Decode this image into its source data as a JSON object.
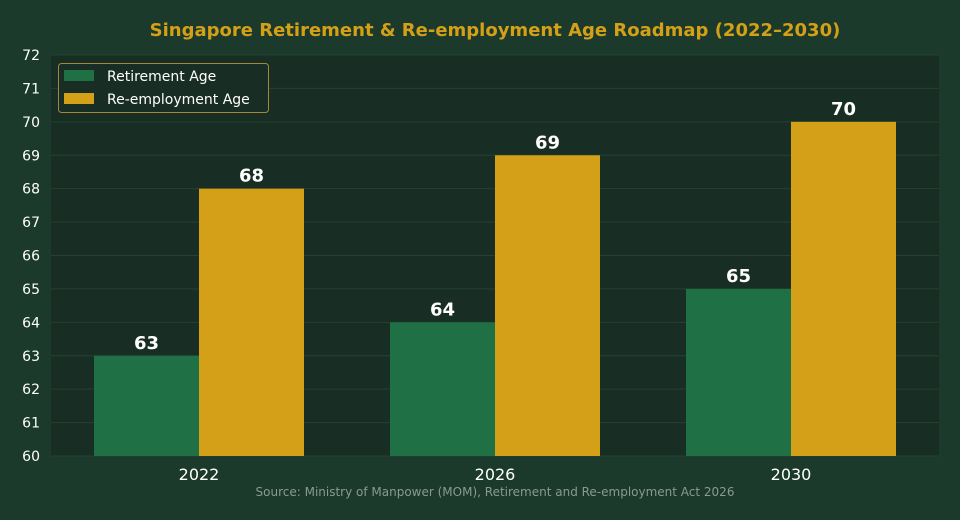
{
  "colors": {
    "background": "#1b3a2c",
    "plot_background": "#182e24",
    "grid": "#24422f",
    "title": "#d4a017",
    "retirement": "#1f7045",
    "reemployment": "#d4a017",
    "text": "#ffffff",
    "source": "#8a9a90"
  },
  "chart_data": {
    "type": "bar",
    "title": "Singapore Retirement & Re-employment Age Roadmap (2022–2030)",
    "categories": [
      "2022",
      "2026",
      "2030"
    ],
    "series": [
      {
        "name": "Retirement Age",
        "values": [
          63,
          64,
          65
        ],
        "color": "#1f7045"
      },
      {
        "name": "Re-employment Age",
        "values": [
          68,
          69,
          70
        ],
        "color": "#d4a017"
      }
    ],
    "ylim": [
      60,
      72
    ],
    "yticks": [
      60,
      61,
      62,
      63,
      64,
      65,
      66,
      67,
      68,
      69,
      70,
      71,
      72
    ],
    "grid": true,
    "legend_position": "top-left",
    "xlabel": "",
    "ylabel": ""
  },
  "source_note": "Source: Ministry of Manpower (MOM), Retirement and Re-employment Act 2026"
}
